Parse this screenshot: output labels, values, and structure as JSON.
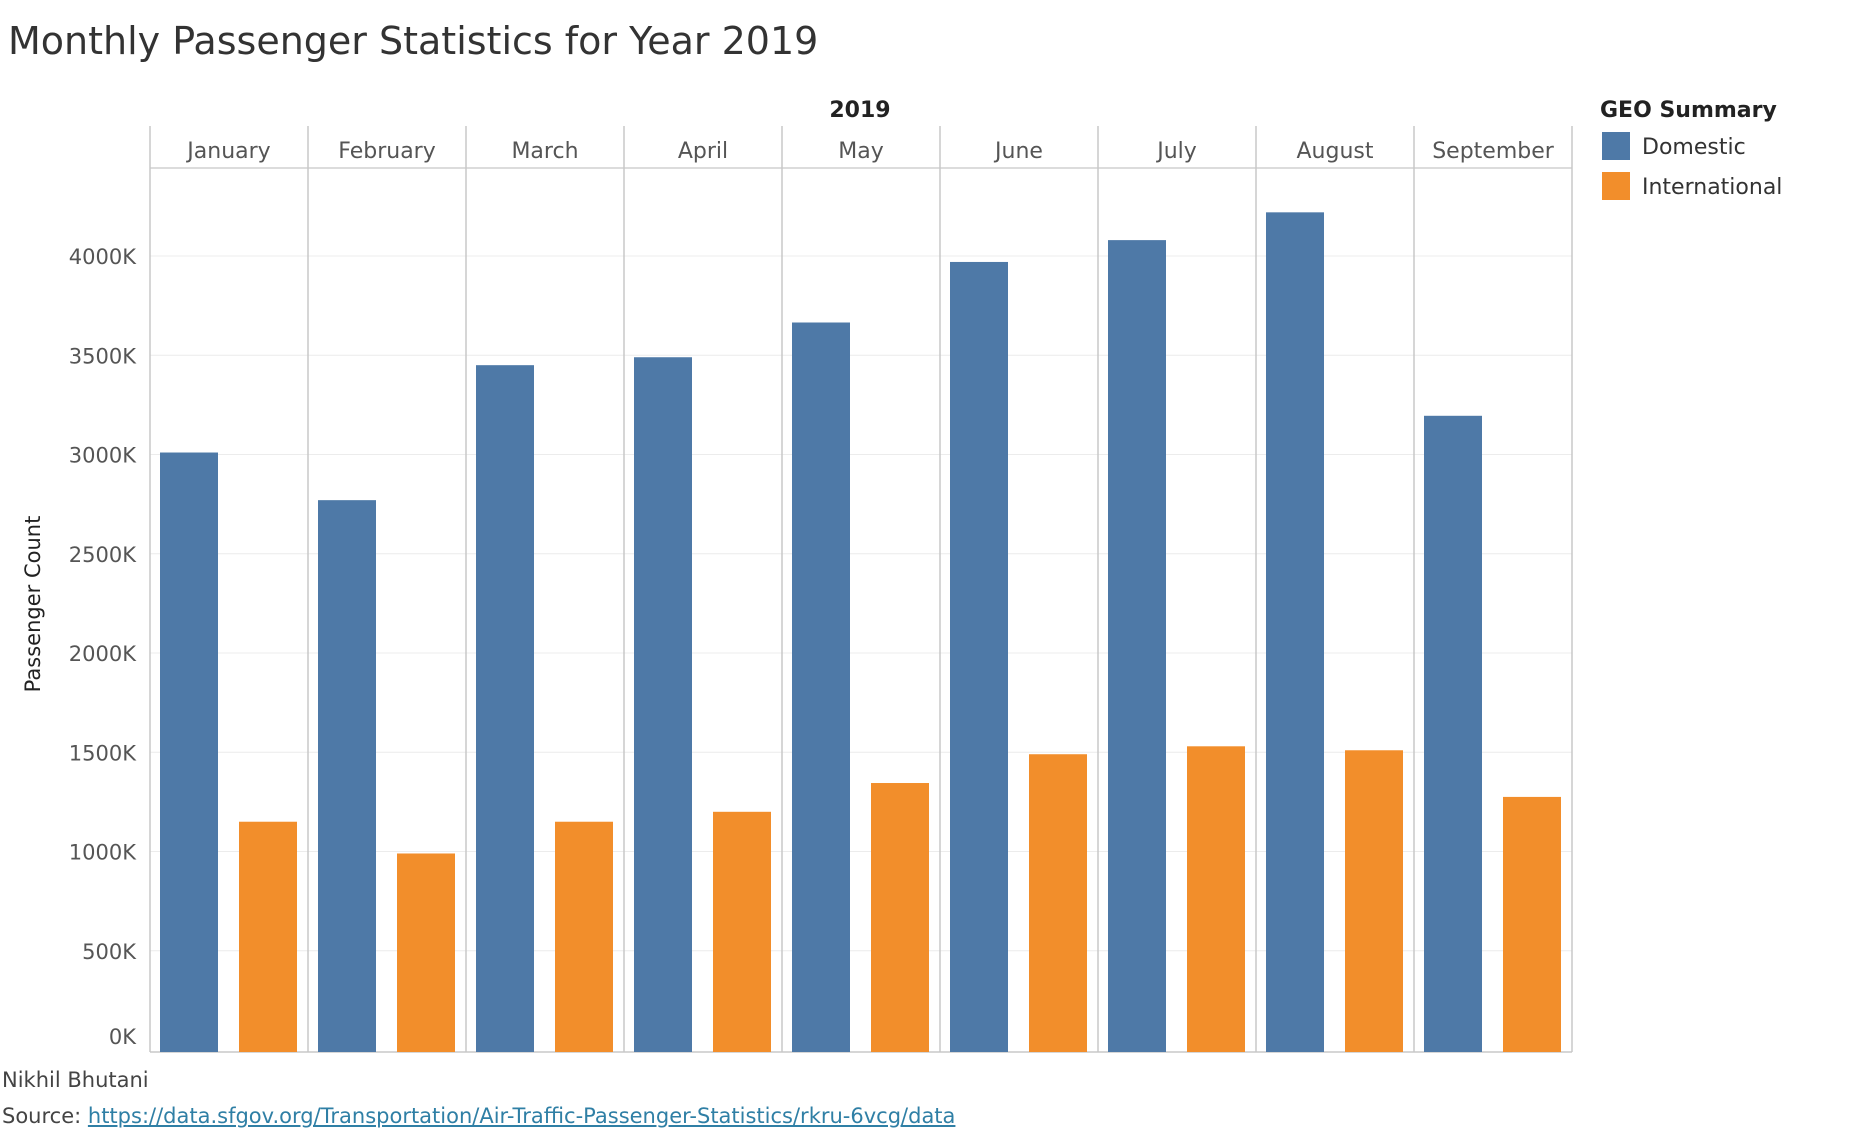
{
  "chart_data": {
    "type": "bar",
    "title": "Monthly Passenger Statistics for Year 2019",
    "column_header": "2019",
    "categories": [
      "January",
      "February",
      "March",
      "April",
      "May",
      "June",
      "July",
      "August",
      "September"
    ],
    "series": [
      {
        "name": "Domestic",
        "color": "#4e79a7",
        "values": [
          3010,
          2770,
          3450,
          3490,
          3665,
          3970,
          4080,
          4220,
          3195
        ]
      },
      {
        "name": "International",
        "color": "#f28e2b",
        "values": [
          1150,
          990,
          1150,
          1200,
          1345,
          1490,
          1530,
          1510,
          1275
        ]
      }
    ],
    "ylabel": "Passenger Count",
    "ylim": [
      0,
      4400
    ],
    "yticks": [
      0,
      500,
      1000,
      1500,
      2000,
      2500,
      3000,
      3500,
      4000
    ],
    "ytick_labels": [
      "0K",
      "500K",
      "1000K",
      "1500K",
      "2000K",
      "2500K",
      "3000K",
      "3500K",
      "4000K"
    ],
    "legend": {
      "title": "GEO Summary",
      "position": "top-right"
    },
    "grid": true
  },
  "footer": {
    "author": "Nikhil Bhutani",
    "source_prefix": "Source: ",
    "source_url": "https://data.sfgov.org/Transportation/Air-Traffic-Passenger-Statistics/rkru-6vcg/data"
  }
}
